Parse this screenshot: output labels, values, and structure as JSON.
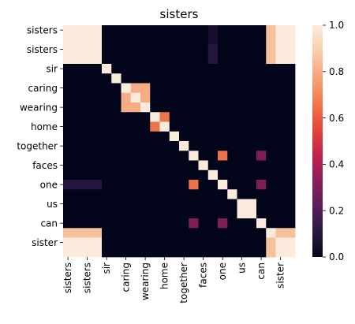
{
  "chart_data": {
    "type": "heatmap",
    "title": "sisters",
    "xlabel": "",
    "ylabel": "",
    "x_labels_full": [
      "sisters",
      "",
      "sisters",
      "",
      "sir",
      "",
      "caring",
      "",
      "wearing",
      "",
      "home",
      "",
      "together",
      "",
      "faces",
      "",
      "one",
      "",
      "us",
      "",
      "can",
      "",
      "sister",
      ""
    ],
    "y_labels_full": [
      "sisters",
      "",
      "sisters",
      "",
      "sir",
      "",
      "caring",
      "",
      "wearing",
      "",
      "home",
      "",
      "together",
      "",
      "faces",
      "",
      "one",
      "",
      "us",
      "",
      "can",
      "",
      "sister",
      ""
    ],
    "x_tick_labels": [
      "sisters",
      "sisters",
      "sir",
      "caring",
      "wearing",
      "home",
      "together",
      "faces",
      "one",
      "us",
      "can",
      "sister"
    ],
    "y_tick_labels": [
      "sisters",
      "sisters",
      "sir",
      "caring",
      "wearing",
      "home",
      "together",
      "faces",
      "one",
      "us",
      "can",
      "sister"
    ],
    "colorbar": {
      "range": [
        0,
        1
      ],
      "ticks": [
        "0.0",
        "0.2",
        "0.4",
        "0.6",
        "0.8",
        "1.0"
      ],
      "colormap": "rocket",
      "stops": [
        "#03051a",
        "#2a1843",
        "#5c1d5c",
        "#8e1d5b",
        "#c3244c",
        "#e4483c",
        "#f17a4d",
        "#f5a57c",
        "#f8cfac",
        "#faebdd"
      ]
    },
    "values": [
      [
        1,
        1,
        1,
        1,
        0,
        0,
        0,
        0,
        0,
        0,
        0,
        0,
        0,
        0,
        0,
        0.05,
        0,
        0,
        0,
        0,
        0,
        0.85,
        1,
        1
      ],
      [
        1,
        1,
        1,
        1,
        0,
        0,
        0,
        0,
        0,
        0,
        0,
        0,
        0,
        0,
        0,
        0.05,
        0,
        0,
        0,
        0,
        0,
        0.85,
        1,
        1
      ],
      [
        1,
        1,
        1,
        1,
        0,
        0,
        0,
        0,
        0,
        0,
        0,
        0,
        0,
        0,
        0,
        0.1,
        0,
        0,
        0,
        0,
        0,
        0.85,
        1,
        1
      ],
      [
        1,
        1,
        1,
        1,
        0,
        0,
        0,
        0,
        0,
        0,
        0,
        0,
        0,
        0,
        0,
        0.1,
        0,
        0,
        0,
        0,
        0,
        0.85,
        1,
        1
      ],
      [
        0,
        0,
        0,
        0,
        1,
        0,
        0,
        0,
        0,
        0,
        0,
        0,
        0,
        0,
        0,
        0,
        0,
        0,
        0,
        0,
        0,
        0,
        0,
        0
      ],
      [
        0,
        0,
        0,
        0,
        0,
        1,
        0,
        0,
        0,
        0,
        0,
        0,
        0,
        0,
        0,
        0,
        0,
        0,
        0,
        0,
        0,
        0,
        0,
        0
      ],
      [
        0,
        0,
        0,
        0,
        0,
        0,
        1,
        0.8,
        0.8,
        0,
        0,
        0,
        0,
        0,
        0,
        0,
        0,
        0,
        0,
        0,
        0,
        0,
        0,
        0
      ],
      [
        0,
        0,
        0,
        0,
        0,
        0,
        0.8,
        1,
        0.8,
        0,
        0,
        0,
        0,
        0,
        0,
        0,
        0,
        0,
        0,
        0,
        0,
        0,
        0,
        0
      ],
      [
        0,
        0,
        0,
        0,
        0,
        0,
        0.8,
        0.8,
        1,
        0,
        0,
        0,
        0,
        0,
        0,
        0,
        0,
        0,
        0,
        0,
        0,
        0,
        0,
        0
      ],
      [
        0,
        0,
        0,
        0,
        0,
        0,
        0,
        0,
        0,
        1,
        0.65,
        0,
        0,
        0,
        0,
        0,
        0,
        0,
        0,
        0,
        0,
        0,
        0,
        0
      ],
      [
        0,
        0,
        0,
        0,
        0,
        0,
        0,
        0,
        0,
        0.65,
        1,
        0,
        0,
        0,
        0,
        0,
        0,
        0,
        0,
        0,
        0,
        0,
        0,
        0
      ],
      [
        0,
        0,
        0,
        0,
        0,
        0,
        0,
        0,
        0,
        0,
        0,
        1,
        0,
        0,
        0,
        0,
        0,
        0,
        0,
        0,
        0,
        0,
        0,
        0
      ],
      [
        0,
        0,
        0,
        0,
        0,
        0,
        0,
        0,
        0,
        0,
        0,
        0,
        1,
        0,
        0,
        0,
        0,
        0,
        0,
        0,
        0,
        0,
        0,
        0
      ],
      [
        0,
        0,
        0,
        0,
        0,
        0,
        0,
        0,
        0,
        0,
        0,
        0,
        0,
        1,
        0,
        0,
        0.65,
        0,
        0,
        0,
        0.3,
        0,
        0,
        0
      ],
      [
        0,
        0,
        0,
        0,
        0,
        0,
        0,
        0,
        0,
        0,
        0,
        0,
        0,
        0,
        1,
        0,
        0,
        0,
        0,
        0,
        0,
        0,
        0,
        0
      ],
      [
        0,
        0,
        0,
        0,
        0,
        0,
        0,
        0,
        0,
        0,
        0,
        0,
        0,
        0,
        0,
        1,
        0,
        0,
        0,
        0,
        0,
        0,
        0,
        0
      ],
      [
        0.1,
        0.1,
        0.1,
        0.1,
        0,
        0,
        0,
        0,
        0,
        0,
        0,
        0,
        0,
        0.65,
        0,
        0,
        1,
        0,
        0,
        0,
        0.3,
        0,
        0,
        0
      ],
      [
        0,
        0,
        0,
        0,
        0,
        0,
        0,
        0,
        0,
        0,
        0,
        0,
        0,
        0,
        0,
        0,
        0,
        1,
        0,
        0,
        0,
        0,
        0,
        0
      ],
      [
        0,
        0,
        0,
        0,
        0,
        0,
        0,
        0,
        0,
        0,
        0,
        0,
        0,
        0,
        0,
        0,
        0,
        0,
        1,
        1,
        0,
        0,
        0,
        0
      ],
      [
        0,
        0,
        0,
        0,
        0,
        0,
        0,
        0,
        0,
        0,
        0,
        0,
        0,
        0,
        0,
        0,
        0,
        0,
        1,
        1,
        0,
        0,
        0,
        0
      ],
      [
        0,
        0,
        0,
        0,
        0,
        0,
        0,
        0,
        0,
        0,
        0,
        0,
        0,
        0.3,
        0,
        0,
        0.3,
        0,
        0,
        0,
        1,
        0,
        0,
        0
      ],
      [
        0.85,
        0.85,
        0.85,
        0.85,
        0,
        0,
        0,
        0,
        0,
        0,
        0,
        0,
        0,
        0,
        0,
        0,
        0,
        0,
        0,
        0,
        0,
        1,
        0.85,
        0.85
      ],
      [
        1,
        1,
        1,
        1,
        0,
        0,
        0,
        0,
        0,
        0,
        0,
        0,
        0,
        0,
        0,
        0,
        0,
        0,
        0,
        0,
        0,
        0.85,
        1,
        1
      ],
      [
        1,
        1,
        1,
        1,
        0,
        0,
        0,
        0,
        0,
        0,
        0,
        0,
        0,
        0,
        0,
        0,
        0,
        0,
        0,
        0,
        0,
        0.85,
        1,
        1
      ]
    ]
  }
}
